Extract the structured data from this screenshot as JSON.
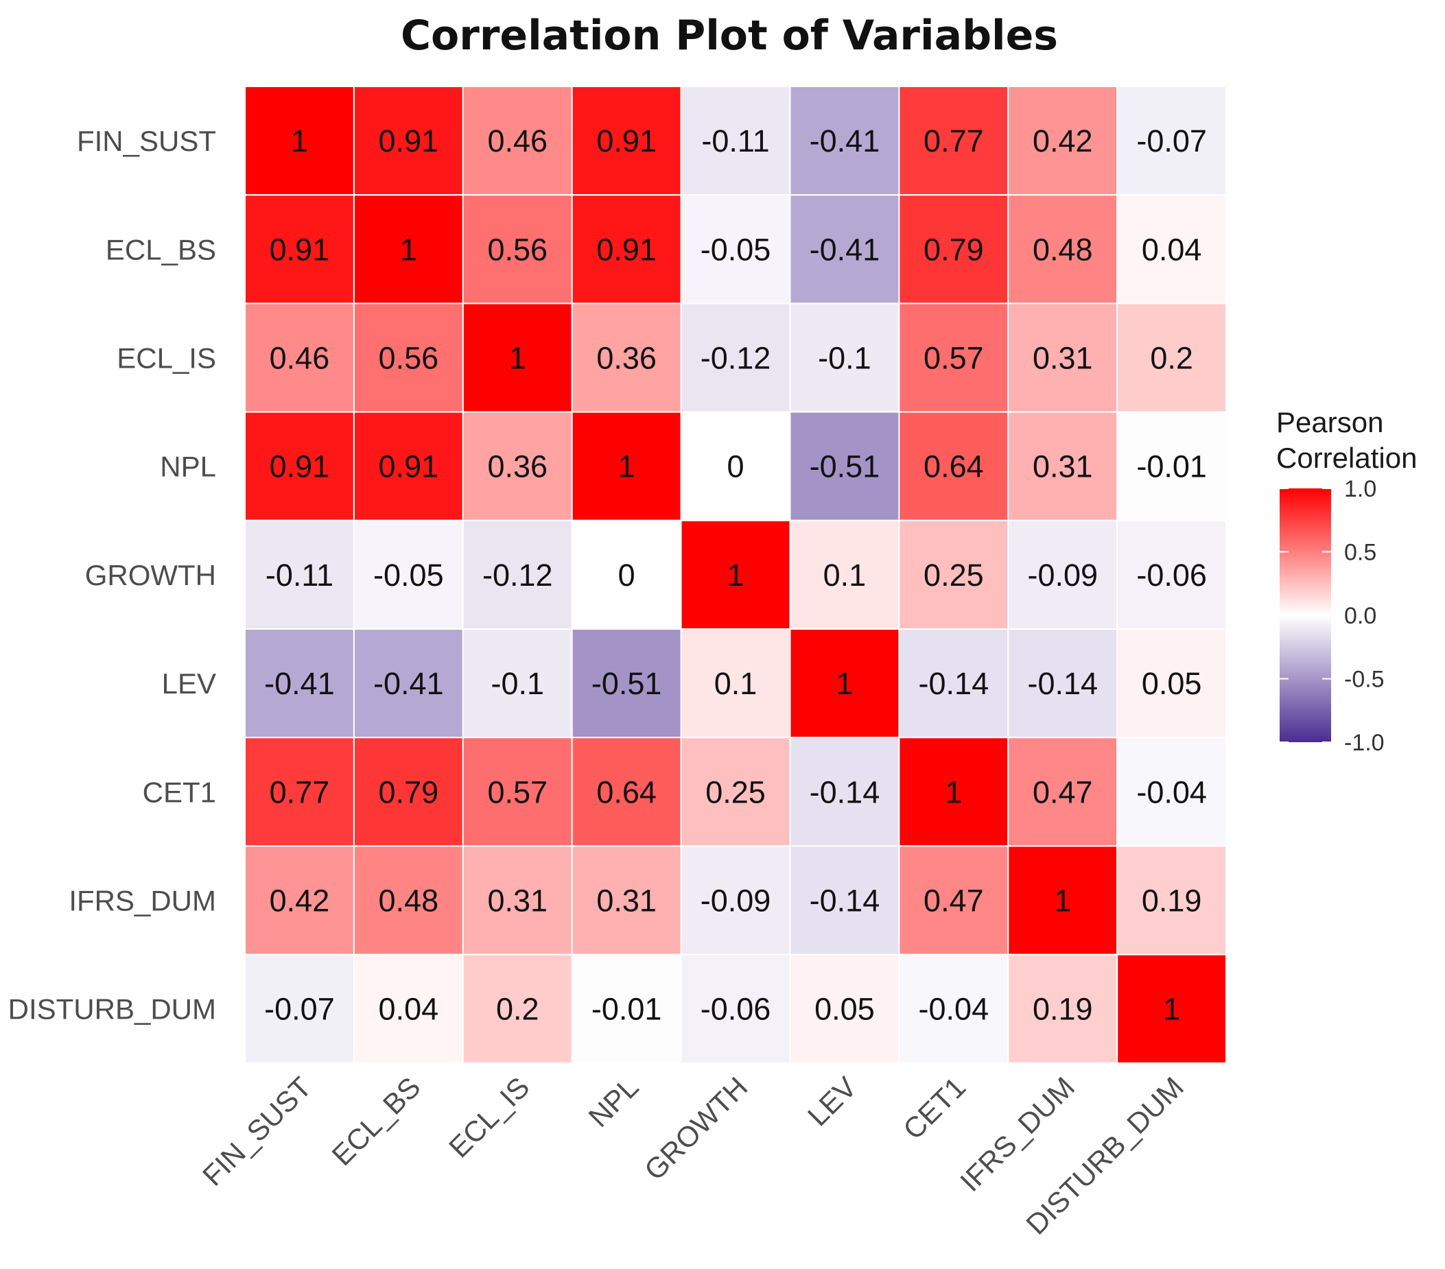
{
  "chart_data": {
    "type": "heatmap",
    "title": "Correlation Plot of Variables",
    "variables": [
      "FIN_SUST",
      "ECL_BS",
      "ECL_IS",
      "NPL",
      "GROWTH",
      "LEV",
      "CET1",
      "IFRS_DUM",
      "DISTURB_DUM"
    ],
    "matrix": [
      [
        1,
        0.91,
        0.46,
        0.91,
        -0.11,
        -0.41,
        0.77,
        0.42,
        -0.07
      ],
      [
        0.91,
        1,
        0.56,
        0.91,
        -0.05,
        -0.41,
        0.79,
        0.48,
        0.04
      ],
      [
        0.46,
        0.56,
        1,
        0.36,
        -0.12,
        -0.1,
        0.57,
        0.31,
        0.2
      ],
      [
        0.91,
        0.91,
        0.36,
        1,
        0,
        -0.51,
        0.64,
        0.31,
        -0.01
      ],
      [
        -0.11,
        -0.05,
        -0.12,
        0,
        1,
        0.1,
        0.25,
        -0.09,
        -0.06
      ],
      [
        -0.41,
        -0.41,
        -0.1,
        -0.51,
        0.1,
        1,
        -0.14,
        -0.14,
        0.05
      ],
      [
        0.77,
        0.79,
        0.57,
        0.64,
        0.25,
        -0.14,
        1,
        0.47,
        -0.04
      ],
      [
        0.42,
        0.48,
        0.31,
        0.31,
        -0.09,
        -0.14,
        0.47,
        1,
        0.19
      ],
      [
        -0.07,
        0.04,
        0.2,
        -0.01,
        -0.06,
        0.05,
        -0.04,
        0.19,
        1
      ]
    ],
    "legend": {
      "title_lines": [
        "Pearson",
        "Correlation"
      ],
      "ticks": [
        1.0,
        0.5,
        0.0,
        -0.5,
        -1.0
      ],
      "tick_labels": [
        "1.0",
        "0.5",
        "0.0",
        "-0.5",
        "-1.0"
      ],
      "range": [
        -1,
        1
      ],
      "placement": "right"
    },
    "colors": {
      "high": "#FF0000",
      "mid": "#FFFFFF",
      "low": "#4B2C91",
      "cell_border": "#FFFFFF"
    }
  }
}
